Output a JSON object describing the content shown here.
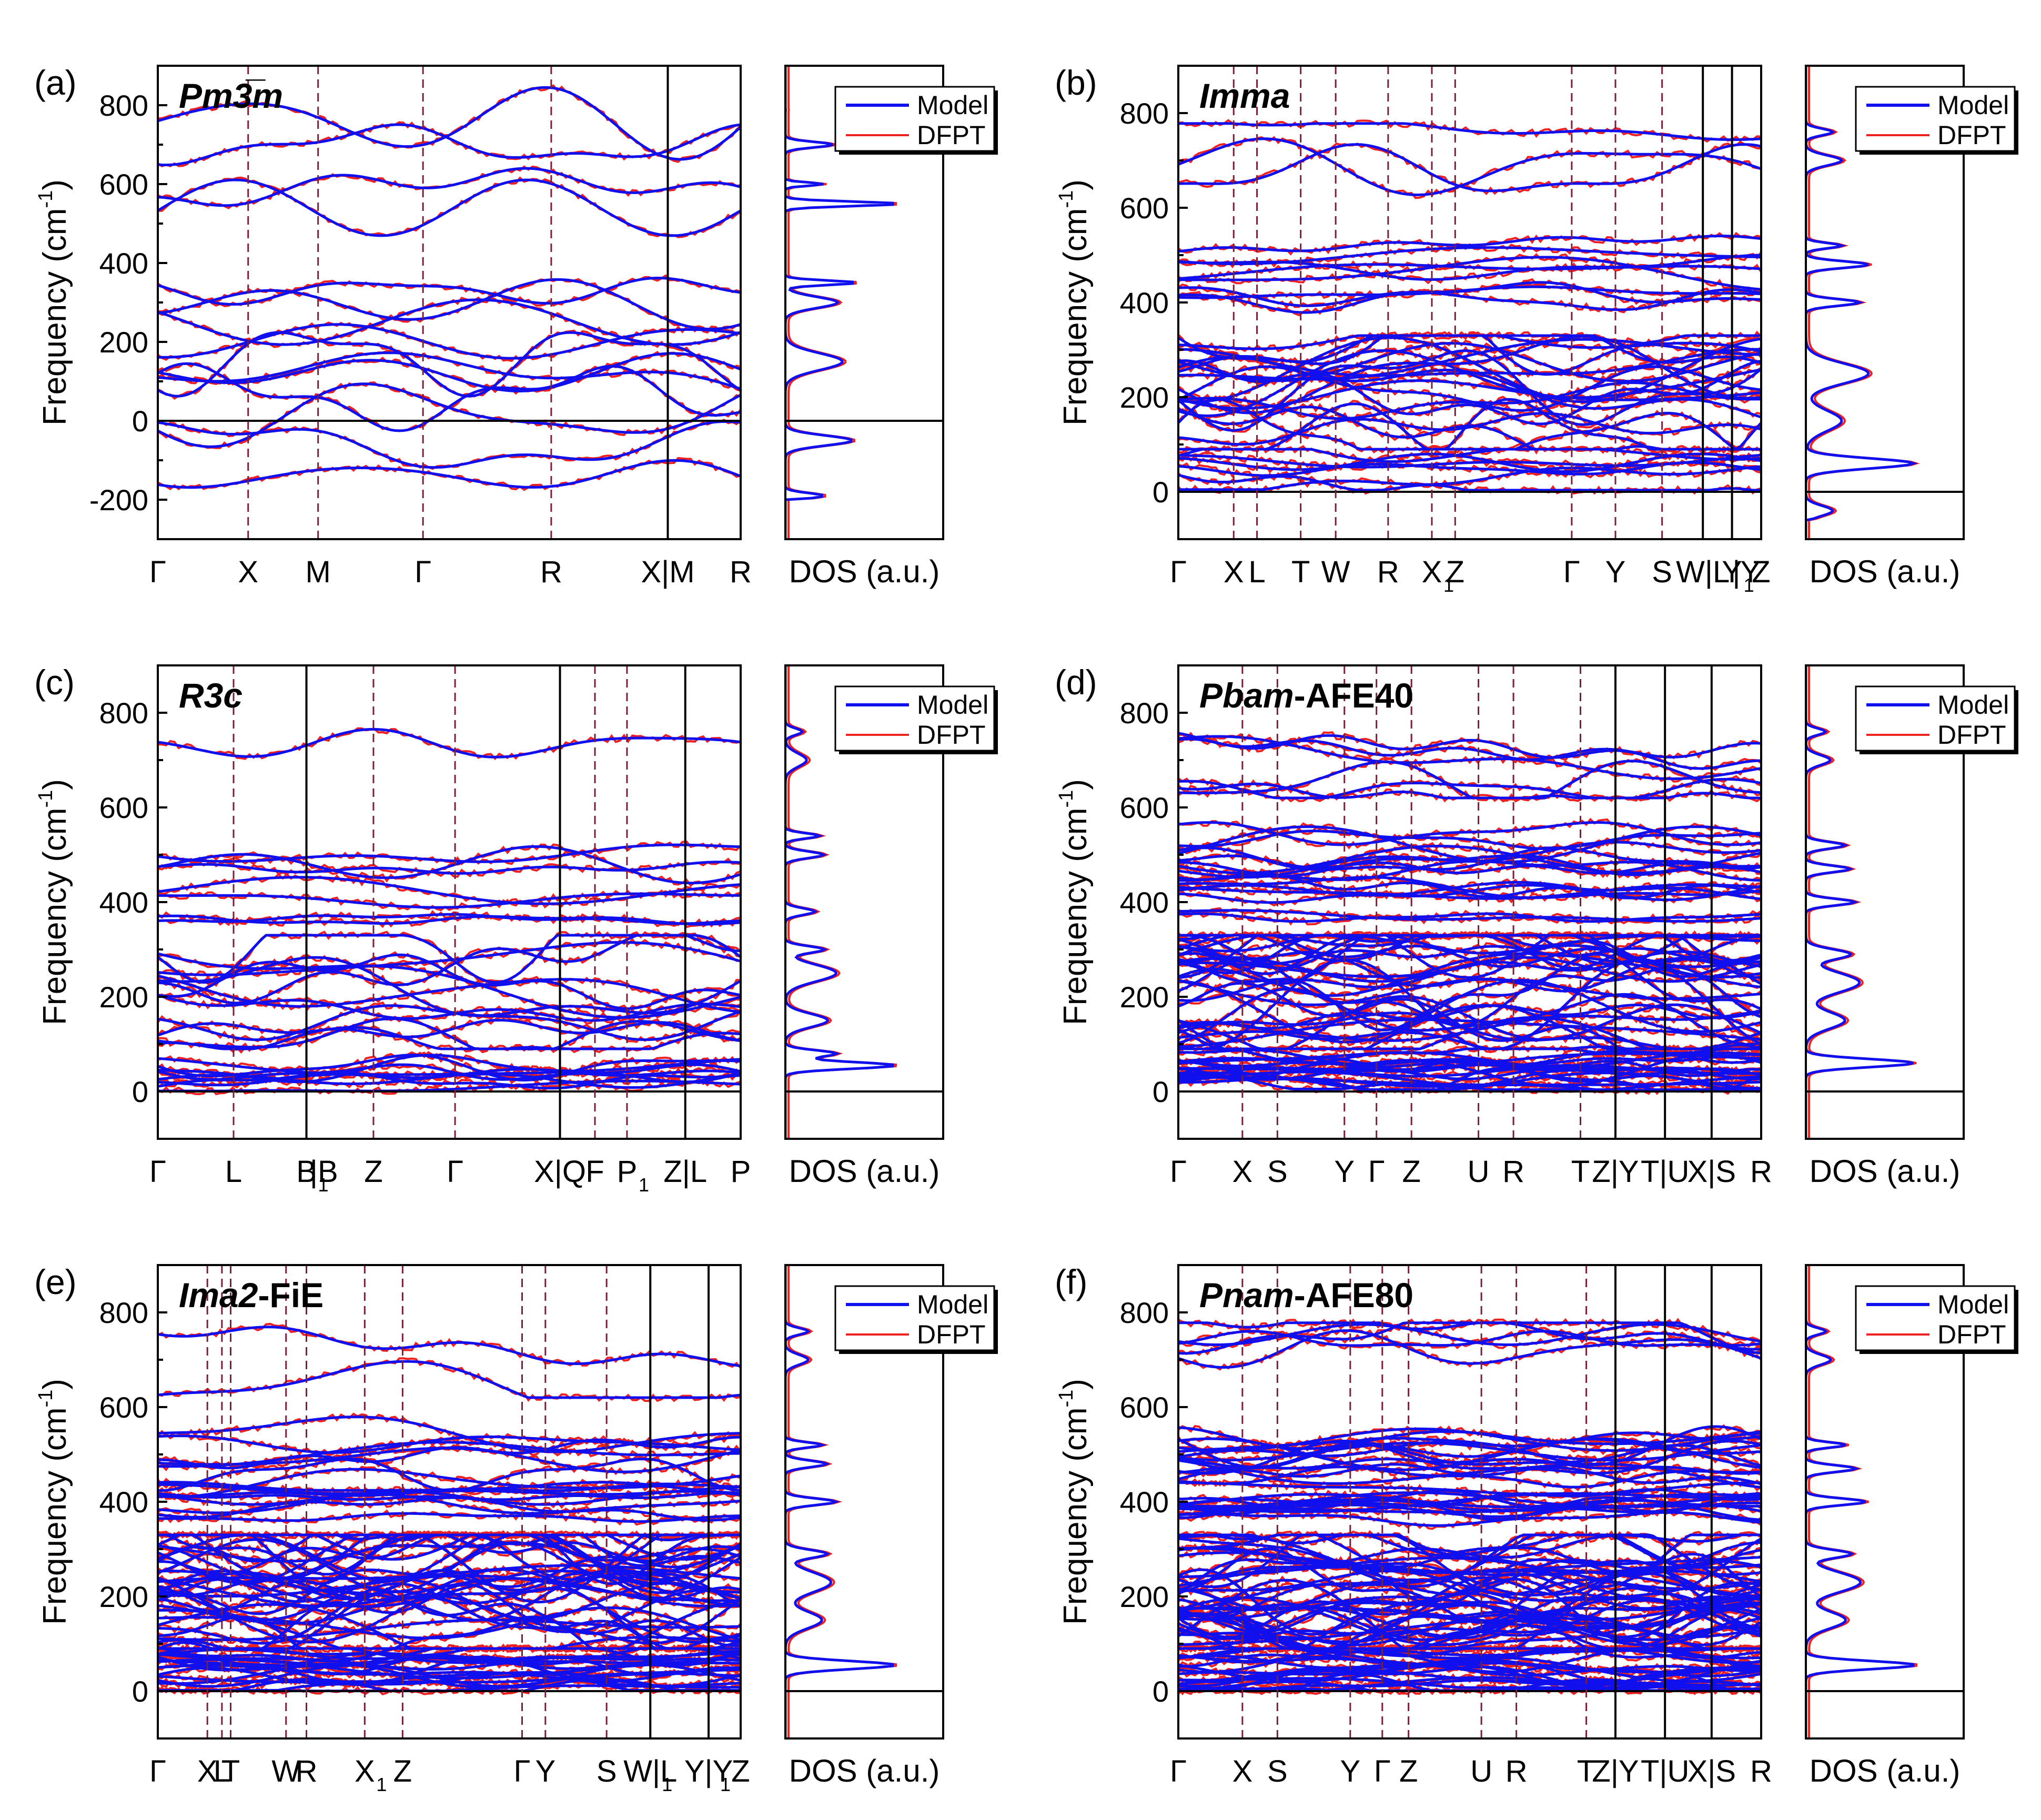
{
  "colors": {
    "model": "#1010ee",
    "dfpt": "#ee2020",
    "kline": "#7a1f3a",
    "axis": "#000000"
  },
  "legend": {
    "model_label": "Model",
    "dfpt_label": "DFPT"
  },
  "dos_xlabel": "DOS (a.u.)",
  "ylabel_text": "Frequency (cm",
  "ylabel_sup": "-1",
  "ylabel_close": ")",
  "panels": [
    {
      "letter": "(a)",
      "title_italic": "Pm3̅m",
      "title_rest": "",
      "ylim": [
        -300,
        900
      ],
      "yticks": [
        -200,
        0,
        200,
        400,
        600,
        800
      ],
      "kpoints": [
        {
          "label": "Γ",
          "sub": "",
          "pos": 0.0,
          "line": "none"
        },
        {
          "label": "X",
          "sub": "",
          "pos": 0.155,
          "line": "dash"
        },
        {
          "label": "M",
          "sub": "",
          "pos": 0.275,
          "line": "dash"
        },
        {
          "label": "Γ",
          "sub": "",
          "pos": 0.455,
          "line": "dash"
        },
        {
          "label": "R",
          "sub": "",
          "pos": 0.675,
          "line": "dash"
        },
        {
          "label": "X|M",
          "sub": "",
          "pos": 0.875,
          "line": "solid"
        },
        {
          "label": "R",
          "sub": "",
          "pos": 1.0,
          "line": "none"
        }
      ],
      "bands": 15,
      "seed": 3,
      "density": "sparse",
      "dos_peaks": [
        [
          -190,
          40,
          10
        ],
        [
          -50,
          70,
          18
        ],
        [
          150,
          60,
          30
        ],
        [
          300,
          55,
          20
        ],
        [
          350,
          75,
          8
        ],
        [
          550,
          120,
          8
        ],
        [
          600,
          40,
          6
        ],
        [
          700,
          50,
          10
        ],
        [
          810,
          45,
          10
        ]
      ]
    },
    {
      "letter": "(b)",
      "title_italic": "Imma",
      "title_rest": "",
      "ylim": [
        -100,
        900
      ],
      "yticks": [
        0,
        200,
        400,
        600,
        800
      ],
      "kpoints": [
        {
          "label": "Γ",
          "sub": "",
          "pos": 0.0,
          "line": "none"
        },
        {
          "label": "X",
          "sub": "",
          "pos": 0.095,
          "line": "dash"
        },
        {
          "label": "L",
          "sub": "",
          "pos": 0.135,
          "line": "dash"
        },
        {
          "label": "T",
          "sub": "",
          "pos": 0.21,
          "line": "dash"
        },
        {
          "label": "W",
          "sub": "",
          "pos": 0.27,
          "line": "dash"
        },
        {
          "label": "R",
          "sub": "",
          "pos": 0.36,
          "line": "dash"
        },
        {
          "label": "X",
          "sub": "1",
          "pos": 0.435,
          "line": "dash"
        },
        {
          "label": "Z",
          "sub": "",
          "pos": 0.475,
          "line": "dash"
        },
        {
          "label": "Γ",
          "sub": "",
          "pos": 0.675,
          "line": "dash"
        },
        {
          "label": "Y",
          "sub": "",
          "pos": 0.75,
          "line": "dash"
        },
        {
          "label": "S",
          "sub": "",
          "pos": 0.83,
          "line": "dash"
        },
        {
          "label": "W|L",
          "sub": "",
          "pos": 0.9,
          "line": "solid"
        },
        {
          "label": "Y",
          "sub": "1",
          "pos": 0.95,
          "line": "solid"
        },
        {
          "label": "|Y",
          "sub": "",
          "pos": 0.975,
          "line": "none"
        },
        {
          "label": "Z",
          "sub": "",
          "pos": 1.0,
          "line": "none"
        }
      ],
      "bands": 36,
      "seed": 7,
      "density": "medium",
      "dos_peaks": [
        [
          -40,
          30,
          15
        ],
        [
          60,
          120,
          15
        ],
        [
          150,
          40,
          30
        ],
        [
          250,
          70,
          30
        ],
        [
          400,
          60,
          10
        ],
        [
          480,
          70,
          10
        ],
        [
          520,
          40,
          8
        ],
        [
          700,
          40,
          15
        ],
        [
          760,
          30,
          10
        ]
      ]
    },
    {
      "letter": "(c)",
      "title_italic": "R3c",
      "title_rest": "",
      "ylim": [
        -100,
        900
      ],
      "yticks": [
        0,
        200,
        400,
        600,
        800
      ],
      "kpoints": [
        {
          "label": "Γ",
          "sub": "",
          "pos": 0.0,
          "line": "none"
        },
        {
          "label": "L",
          "sub": "",
          "pos": 0.13,
          "line": "dash"
        },
        {
          "label": "B",
          "sub": "1",
          "pos": 0.255,
          "line": "solid"
        },
        {
          "label": "|B",
          "sub": "",
          "pos": 0.285,
          "line": "none"
        },
        {
          "label": "Z",
          "sub": "",
          "pos": 0.37,
          "line": "dash"
        },
        {
          "label": "Γ",
          "sub": "",
          "pos": 0.51,
          "line": "dash"
        },
        {
          "label": "X|Q",
          "sub": "",
          "pos": 0.69,
          "line": "solid"
        },
        {
          "label": "F",
          "sub": "",
          "pos": 0.75,
          "line": "dash"
        },
        {
          "label": "P",
          "sub": "1",
          "pos": 0.805,
          "line": "dash"
        },
        {
          "label": "Z|L",
          "sub": "",
          "pos": 0.905,
          "line": "solid"
        },
        {
          "label": "P",
          "sub": "",
          "pos": 1.0,
          "line": "none"
        }
      ],
      "bands": 28,
      "seed": 11,
      "density": "medium",
      "dos_peaks": [
        [
          55,
          130,
          10
        ],
        [
          80,
          60,
          10
        ],
        [
          150,
          50,
          20
        ],
        [
          250,
          60,
          25
        ],
        [
          300,
          45,
          10
        ],
        [
          380,
          35,
          10
        ],
        [
          500,
          45,
          10
        ],
        [
          540,
          40,
          8
        ],
        [
          700,
          25,
          20
        ],
        [
          760,
          20,
          10
        ]
      ]
    },
    {
      "letter": "(d)",
      "title_italic": "Pbam",
      "title_rest": "-AFE40",
      "ylim": [
        -100,
        900
      ],
      "yticks": [
        0,
        200,
        400,
        600,
        800
      ],
      "kpoints": [
        {
          "label": "Γ",
          "sub": "",
          "pos": 0.0,
          "line": "none"
        },
        {
          "label": "X",
          "sub": "",
          "pos": 0.11,
          "line": "dash"
        },
        {
          "label": "S",
          "sub": "",
          "pos": 0.17,
          "line": "dash"
        },
        {
          "label": "Y",
          "sub": "",
          "pos": 0.285,
          "line": "dash"
        },
        {
          "label": "Γ",
          "sub": "",
          "pos": 0.34,
          "line": "dash"
        },
        {
          "label": "Z",
          "sub": "",
          "pos": 0.4,
          "line": "dash"
        },
        {
          "label": "U",
          "sub": "",
          "pos": 0.515,
          "line": "dash"
        },
        {
          "label": "R",
          "sub": "",
          "pos": 0.575,
          "line": "dash"
        },
        {
          "label": "T",
          "sub": "",
          "pos": 0.69,
          "line": "dash"
        },
        {
          "label": "Z|Y",
          "sub": "",
          "pos": 0.75,
          "line": "solid"
        },
        {
          "label": "T|U",
          "sub": "",
          "pos": 0.835,
          "line": "solid"
        },
        {
          "label": "X|S",
          "sub": "",
          "pos": 0.915,
          "line": "solid"
        },
        {
          "label": "R",
          "sub": "",
          "pos": 1.0,
          "line": "none"
        }
      ],
      "bands": 70,
      "seed": 17,
      "density": "dense",
      "dos_peaks": [
        [
          60,
          110,
          12
        ],
        [
          150,
          40,
          25
        ],
        [
          230,
          55,
          30
        ],
        [
          290,
          45,
          15
        ],
        [
          400,
          50,
          10
        ],
        [
          470,
          45,
          10
        ],
        [
          520,
          40,
          10
        ],
        [
          700,
          25,
          15
        ],
        [
          760,
          20,
          10
        ]
      ]
    },
    {
      "letter": "(e)",
      "title_italic": "Ima2",
      "title_rest": "-FiE",
      "ylim": [
        -100,
        900
      ],
      "yticks": [
        0,
        200,
        400,
        600,
        800
      ],
      "kpoints": [
        {
          "label": "Γ",
          "sub": "",
          "pos": 0.0,
          "line": "none"
        },
        {
          "label": "X",
          "sub": "",
          "pos": 0.085,
          "line": "dash"
        },
        {
          "label": "L",
          "sub": "",
          "pos": 0.11,
          "line": "dash"
        },
        {
          "label": "T",
          "sub": "",
          "pos": 0.125,
          "line": "dash"
        },
        {
          "label": "W",
          "sub": "",
          "pos": 0.22,
          "line": "dash"
        },
        {
          "label": "R",
          "sub": "",
          "pos": 0.255,
          "line": "dash"
        },
        {
          "label": "X",
          "sub": "1",
          "pos": 0.355,
          "line": "dash"
        },
        {
          "label": "Z",
          "sub": "",
          "pos": 0.42,
          "line": "dash"
        },
        {
          "label": "Γ",
          "sub": "",
          "pos": 0.625,
          "line": "dash"
        },
        {
          "label": "Y",
          "sub": "",
          "pos": 0.665,
          "line": "dash"
        },
        {
          "label": "S",
          "sub": "",
          "pos": 0.77,
          "line": "dash"
        },
        {
          "label": "W|L",
          "sub": "1",
          "pos": 0.845,
          "line": "solid"
        },
        {
          "label": "Y|Y",
          "sub": "1",
          "pos": 0.945,
          "line": "solid"
        },
        {
          "label": "Z",
          "sub": "",
          "pos": 1.0,
          "line": "none"
        }
      ],
      "bands": 70,
      "seed": 23,
      "density": "dense",
      "dos_peaks": [
        [
          55,
          120,
          12
        ],
        [
          150,
          40,
          25
        ],
        [
          230,
          50,
          30
        ],
        [
          290,
          45,
          12
        ],
        [
          400,
          55,
          10
        ],
        [
          480,
          45,
          10
        ],
        [
          520,
          40,
          8
        ],
        [
          700,
          25,
          15
        ],
        [
          760,
          25,
          10
        ]
      ]
    },
    {
      "letter": "(f)",
      "title_italic": "Pnam",
      "title_rest": "-AFE80",
      "ylim": [
        -100,
        900
      ],
      "yticks": [
        0,
        200,
        400,
        600,
        800
      ],
      "kpoints": [
        {
          "label": "Γ",
          "sub": "",
          "pos": 0.0,
          "line": "none"
        },
        {
          "label": "X",
          "sub": "",
          "pos": 0.11,
          "line": "dash"
        },
        {
          "label": "S",
          "sub": "",
          "pos": 0.17,
          "line": "dash"
        },
        {
          "label": "Y",
          "sub": "",
          "pos": 0.295,
          "line": "dash"
        },
        {
          "label": "Γ",
          "sub": "",
          "pos": 0.35,
          "line": "dash"
        },
        {
          "label": "Z",
          "sub": "",
          "pos": 0.395,
          "line": "dash"
        },
        {
          "label": "U",
          "sub": "",
          "pos": 0.52,
          "line": "dash"
        },
        {
          "label": "R",
          "sub": "",
          "pos": 0.58,
          "line": "dash"
        },
        {
          "label": "T",
          "sub": "",
          "pos": 0.7,
          "line": "dash"
        },
        {
          "label": "Z|Y",
          "sub": "",
          "pos": 0.75,
          "line": "solid"
        },
        {
          "label": "T|U",
          "sub": "",
          "pos": 0.835,
          "line": "solid"
        },
        {
          "label": "X|S",
          "sub": "",
          "pos": 0.915,
          "line": "solid"
        },
        {
          "label": "R",
          "sub": "",
          "pos": 1.0,
          "line": "none"
        }
      ],
      "bands": 90,
      "seed": 29,
      "density": "dense",
      "dos_peaks": [
        [
          55,
          110,
          12
        ],
        [
          150,
          40,
          25
        ],
        [
          230,
          55,
          30
        ],
        [
          290,
          45,
          12
        ],
        [
          400,
          60,
          10
        ],
        [
          470,
          50,
          10
        ],
        [
          520,
          40,
          8
        ],
        [
          700,
          25,
          15
        ],
        [
          760,
          20,
          10
        ]
      ]
    }
  ],
  "chart_data": [
    {
      "type": "line",
      "title": "(a) Pm3̅m",
      "xlabel": "",
      "ylabel": "Frequency (cm-1)",
      "ylim": [
        -300,
        900
      ],
      "x_ticks": [
        "Γ",
        "X",
        "M",
        "Γ",
        "R",
        "X|M",
        "R"
      ],
      "series": [
        {
          "name": "Model"
        },
        {
          "name": "DFPT"
        }
      ],
      "band_frequency_range": [
        -190,
        830
      ],
      "dos_xlabel": "DOS (a.u.)"
    },
    {
      "type": "line",
      "title": "(b) Imma",
      "xlabel": "",
      "ylabel": "Frequency (cm-1)",
      "ylim": [
        -100,
        900
      ],
      "x_ticks": [
        "Γ",
        "X",
        "L",
        "T",
        "W",
        "R",
        "X1",
        "Z",
        "Γ",
        "Y",
        "S",
        "W|L",
        "Y1",
        "|Y",
        "Z"
      ],
      "series": [
        {
          "name": "Model"
        },
        {
          "name": "DFPT"
        }
      ],
      "band_frequency_range": [
        -60,
        775
      ],
      "dos_xlabel": "DOS (a.u.)"
    },
    {
      "type": "line",
      "title": "(c) R3c",
      "xlabel": "",
      "ylabel": "Frequency (cm-1)",
      "ylim": [
        -100,
        900
      ],
      "x_ticks": [
        "Γ",
        "L",
        "B1",
        "|B",
        "Z",
        "Γ",
        "X|Q",
        "F",
        "P1",
        "Z|L",
        "P"
      ],
      "series": [
        {
          "name": "Model"
        },
        {
          "name": "DFPT"
        }
      ],
      "band_frequency_range": [
        0,
        780
      ],
      "dos_xlabel": "DOS (a.u.)"
    },
    {
      "type": "line",
      "title": "(d) Pbam-AFE40",
      "xlabel": "",
      "ylabel": "Frequency (cm-1)",
      "ylim": [
        -100,
        900
      ],
      "x_ticks": [
        "Γ",
        "X",
        "S",
        "Y",
        "Γ",
        "Z",
        "U",
        "R",
        "T",
        "Z|Y",
        "T|U",
        "X|S",
        "R"
      ],
      "series": [
        {
          "name": "Model"
        },
        {
          "name": "DFPT"
        }
      ],
      "band_frequency_range": [
        -20,
        775
      ],
      "dos_xlabel": "DOS (a.u.)"
    },
    {
      "type": "line",
      "title": "(e) Ima2-FiE",
      "xlabel": "",
      "ylabel": "Frequency (cm-1)",
      "ylim": [
        -100,
        900
      ],
      "x_ticks": [
        "Γ",
        "X",
        "L",
        "T",
        "W",
        "R",
        "X1",
        "Z",
        "Γ",
        "Y",
        "S",
        "W|L1",
        "Y|Y1",
        "Z"
      ],
      "series": [
        {
          "name": "Model"
        },
        {
          "name": "DFPT"
        }
      ],
      "band_frequency_range": [
        0,
        775
      ],
      "dos_xlabel": "DOS (a.u.)"
    },
    {
      "type": "line",
      "title": "(f) Pnam-AFE80",
      "xlabel": "",
      "ylabel": "Frequency (cm-1)",
      "ylim": [
        -100,
        900
      ],
      "x_ticks": [
        "Γ",
        "X",
        "S",
        "Y",
        "Γ",
        "Z",
        "U",
        "R",
        "T",
        "Z|Y",
        "T|U",
        "X|S",
        "R"
      ],
      "series": [
        {
          "name": "Model"
        },
        {
          "name": "DFPT"
        }
      ],
      "band_frequency_range": [
        0,
        775
      ],
      "dos_xlabel": "DOS (a.u.)"
    }
  ]
}
